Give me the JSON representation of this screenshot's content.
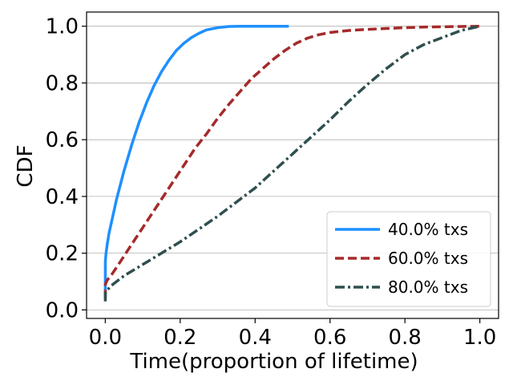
{
  "chart_data": {
    "type": "line",
    "xlabel": "Time(proportion of lifetime)",
    "ylabel": "CDF",
    "xlim": [
      -0.05,
      1.05
    ],
    "ylim": [
      -0.03,
      1.05
    ],
    "x_ticks": [
      "0.0",
      "0.2",
      "0.4",
      "0.6",
      "0.8",
      "1.0"
    ],
    "y_ticks": [
      "0.0",
      "0.2",
      "0.4",
      "0.6",
      "0.8",
      "1.0"
    ],
    "grid": "horizontal",
    "legend_position": "bottom-right",
    "series": [
      {
        "name": "40.0% txs",
        "color": "#1E90FF",
        "style": "solid",
        "x": [
          0.0,
          0.0,
          0.002,
          0.005,
          0.01,
          0.02,
          0.03,
          0.05,
          0.07,
          0.09,
          0.11,
          0.13,
          0.15,
          0.17,
          0.19,
          0.21,
          0.23,
          0.25,
          0.27,
          0.3,
          0.33,
          0.36,
          0.4,
          0.45,
          0.49
        ],
        "y": [
          0.05,
          0.17,
          0.2,
          0.23,
          0.27,
          0.33,
          0.39,
          0.49,
          0.58,
          0.66,
          0.73,
          0.79,
          0.84,
          0.88,
          0.915,
          0.94,
          0.96,
          0.975,
          0.987,
          0.995,
          0.999,
          1.0,
          1.0,
          1.0,
          1.0
        ]
      },
      {
        "name": "60.0% txs",
        "color": "#A52A2A",
        "style": "dashed",
        "x": [
          0.0,
          0.0,
          0.005,
          0.02,
          0.04,
          0.06,
          0.08,
          0.1,
          0.12,
          0.15,
          0.18,
          0.21,
          0.24,
          0.27,
          0.3,
          0.33,
          0.36,
          0.39,
          0.42,
          0.45,
          0.48,
          0.51,
          0.54,
          0.57,
          0.6,
          0.65,
          0.7,
          0.75,
          0.8,
          0.85,
          0.9,
          0.95,
          1.0
        ],
        "y": [
          0.04,
          0.09,
          0.105,
          0.13,
          0.17,
          0.21,
          0.25,
          0.29,
          0.33,
          0.39,
          0.45,
          0.51,
          0.57,
          0.62,
          0.675,
          0.725,
          0.77,
          0.815,
          0.85,
          0.885,
          0.915,
          0.94,
          0.958,
          0.97,
          0.978,
          0.985,
          0.989,
          0.992,
          0.995,
          0.997,
          0.998,
          0.999,
          1.0
        ]
      },
      {
        "name": "80.0% txs",
        "color": "#2F4F4F",
        "style": "dashdot",
        "x": [
          0.0,
          0.0,
          0.005,
          0.02,
          0.05,
          0.1,
          0.15,
          0.2,
          0.25,
          0.3,
          0.35,
          0.4,
          0.45,
          0.5,
          0.55,
          0.6,
          0.65,
          0.7,
          0.75,
          0.8,
          0.85,
          0.9,
          0.95,
          1.0
        ],
        "y": [
          0.03,
          0.06,
          0.07,
          0.09,
          0.12,
          0.16,
          0.2,
          0.24,
          0.285,
          0.33,
          0.38,
          0.43,
          0.49,
          0.55,
          0.61,
          0.67,
          0.735,
          0.795,
          0.85,
          0.9,
          0.935,
          0.96,
          0.985,
          1.0
        ]
      }
    ]
  }
}
